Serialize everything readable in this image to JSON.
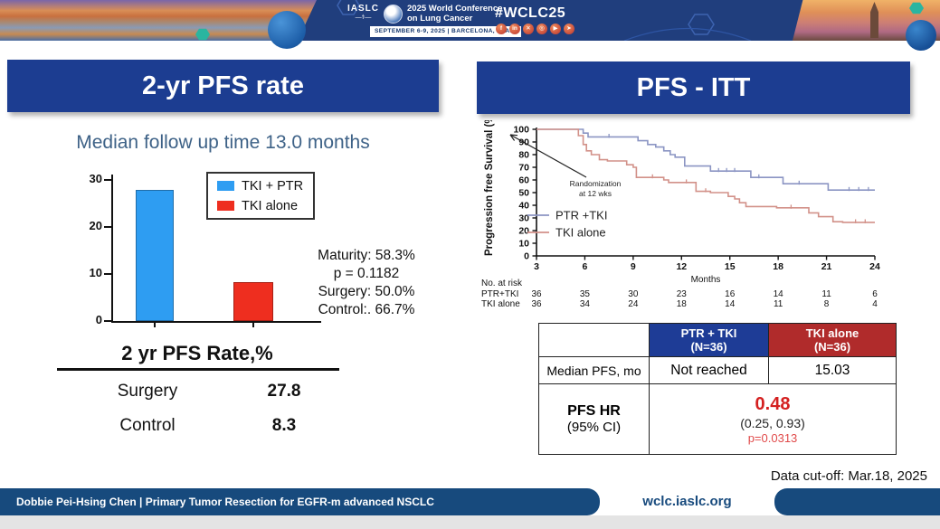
{
  "banner": {
    "iaslc_label": "IASLC",
    "conference_title_line1": "2025 World Conference",
    "conference_title_line2": "on Lung Cancer",
    "conference_dates": "SEPTEMBER 6-9, 2025  |  BARCELONA, SPAIN",
    "hashtag": "#WCLC25",
    "social": [
      {
        "name": "facebook-icon",
        "glyph": "f"
      },
      {
        "name": "linkedin-icon",
        "glyph": "in"
      },
      {
        "name": "x-icon",
        "glyph": "✕"
      },
      {
        "name": "instagram-icon",
        "glyph": "◎"
      },
      {
        "name": "youtube-icon",
        "glyph": "▶"
      },
      {
        "name": "share-icon",
        "glyph": "➤"
      }
    ]
  },
  "left_panel": {
    "title": "2-yr PFS rate",
    "subtitle": "Median follow up time 13.0 months",
    "stats_lines": [
      "Maturity: 58.3%",
      "p = 0.1182",
      "Surgery: 50.0%",
      "Control:. 66.7%"
    ],
    "table": {
      "title": "2 yr PFS Rate,%",
      "rows": [
        {
          "label": "Surgery",
          "value": "27.8"
        },
        {
          "label": "Control",
          "value": "8.3"
        }
      ]
    }
  },
  "right_panel": {
    "title": "PFS - ITT",
    "results_table": {
      "col1_header": "PTR + TKI",
      "col1_sub": "(N=36)",
      "col2_header": "TKI alone",
      "col2_sub": "(N=36)",
      "row1_label": "Median PFS, mo",
      "row1_col1": "Not reached",
      "row1_col2": "15.03",
      "row2_label1": "PFS HR",
      "row2_label2": "(95% CI)",
      "hr_value": "0.48",
      "hr_ci": "(0.25, 0.93)",
      "hr_p": "p=0.0313"
    },
    "data_cutoff": "Data cut-off: Mar.18, 2025"
  },
  "footer": {
    "credit": "Dobbie Pei-Hsing Chen | Primary Tumor Resection for EGFR-m advanced NSCLC",
    "site": "wclc.iaslc.org"
  },
  "colors": {
    "panel_header_bg": "#1c3d91",
    "banner_bg": "#203e7d",
    "subtitle_blue": "#3e6287",
    "bar_blue": "#2e9df2",
    "bar_red": "#ee2e1f",
    "km_blue": "#8b95c3",
    "km_red": "#d29189",
    "table_header_blue": "#1e3c96",
    "table_header_red": "#b02b2b",
    "hr_red": "#d42020",
    "footer_bg": "#174a7d"
  },
  "chart_data": [
    {
      "type": "bar",
      "title": "2-yr PFS rate",
      "categories": [
        "TKI + PTR",
        "TKI alone"
      ],
      "values": [
        27.8,
        8.3
      ],
      "colors": [
        "#2e9df2",
        "#ee2e1f"
      ],
      "xlabel": "",
      "ylabel": "",
      "ylim": [
        0,
        30
      ],
      "yticks": [
        0,
        10,
        20,
        30
      ],
      "legend": [
        "TKI + PTR",
        "TKI alone"
      ],
      "legend_position": "top-right",
      "grid": false
    },
    {
      "type": "line",
      "subtype": "kaplan-meier",
      "title": "PFS - ITT",
      "xlabel": "Months",
      "ylabel": "Progression free Survival (%)",
      "xlim": [
        3,
        24
      ],
      "xticks": [
        3,
        6,
        9,
        12,
        15,
        18,
        21,
        24
      ],
      "ylim": [
        0,
        100
      ],
      "yticks": [
        0,
        10,
        20,
        30,
        40,
        50,
        60,
        70,
        80,
        90,
        100
      ],
      "grid": false,
      "legend_position": "inside-left",
      "annotation": {
        "lines": [
          "Randomization",
          "at 12 wks"
        ]
      },
      "series": [
        {
          "name": "PTR +TKI",
          "color": "#8b95c3",
          "points": [
            [
              3,
              100
            ],
            [
              5.9,
              100
            ],
            [
              5.9,
              97
            ],
            [
              6.2,
              97
            ],
            [
              6.2,
              94
            ],
            [
              9.3,
              94
            ],
            [
              9.3,
              91
            ],
            [
              9.9,
              91
            ],
            [
              9.9,
              88
            ],
            [
              10.4,
              88
            ],
            [
              10.4,
              86
            ],
            [
              10.9,
              86
            ],
            [
              10.9,
              83
            ],
            [
              11.3,
              83
            ],
            [
              11.3,
              80
            ],
            [
              11.6,
              80
            ],
            [
              11.6,
              78
            ],
            [
              12.2,
              78
            ],
            [
              12.2,
              71
            ],
            [
              13.8,
              71
            ],
            [
              13.8,
              67
            ],
            [
              16.3,
              67
            ],
            [
              16.3,
              62
            ],
            [
              18.3,
              62
            ],
            [
              18.3,
              57
            ],
            [
              21.1,
              57
            ],
            [
              21.1,
              52
            ],
            [
              24,
              52
            ]
          ],
          "censors": [
            [
              7.5,
              94
            ],
            [
              14.3,
              67
            ],
            [
              14.8,
              67
            ],
            [
              15.3,
              67
            ],
            [
              16.8,
              62
            ],
            [
              19.3,
              57
            ],
            [
              22.4,
              52
            ],
            [
              23.0,
              52
            ],
            [
              23.6,
              52
            ]
          ]
        },
        {
          "name": "TKI alone",
          "color": "#d29189",
          "points": [
            [
              3,
              100
            ],
            [
              5.6,
              100
            ],
            [
              5.6,
              95
            ],
            [
              5.9,
              95
            ],
            [
              5.9,
              88
            ],
            [
              6.1,
              88
            ],
            [
              6.1,
              83
            ],
            [
              6.4,
              83
            ],
            [
              6.4,
              80
            ],
            [
              6.9,
              80
            ],
            [
              6.9,
              76
            ],
            [
              7.4,
              76
            ],
            [
              7.4,
              75
            ],
            [
              8.6,
              75
            ],
            [
              8.6,
              72
            ],
            [
              9.0,
              72
            ],
            [
              9.0,
              70
            ],
            [
              9.2,
              70
            ],
            [
              9.2,
              62
            ],
            [
              10.9,
              62
            ],
            [
              10.9,
              60
            ],
            [
              11.2,
              60
            ],
            [
              11.2,
              58
            ],
            [
              12.9,
              58
            ],
            [
              12.9,
              51
            ],
            [
              13.8,
              51
            ],
            [
              13.8,
              50
            ],
            [
              14.9,
              50
            ],
            [
              14.9,
              47
            ],
            [
              15.3,
              47
            ],
            [
              15.3,
              45
            ],
            [
              15.6,
              45
            ],
            [
              15.6,
              42
            ],
            [
              16.0,
              42
            ],
            [
              16.0,
              39
            ],
            [
              17.9,
              39
            ],
            [
              17.9,
              38
            ],
            [
              19.9,
              38
            ],
            [
              19.9,
              34
            ],
            [
              20.5,
              34
            ],
            [
              20.5,
              31
            ],
            [
              21.4,
              31
            ],
            [
              21.4,
              27
            ],
            [
              22.0,
              27
            ],
            [
              22.0,
              26.5
            ],
            [
              24,
              26.5
            ]
          ],
          "censors": [
            [
              10.2,
              62
            ],
            [
              12.3,
              58
            ],
            [
              13.5,
              51
            ],
            [
              18.8,
              38
            ],
            [
              22.8,
              26.5
            ],
            [
              23.4,
              26.5
            ]
          ]
        }
      ],
      "no_at_risk": {
        "label": "No. at  risk",
        "rows": [
          {
            "name": "PTR+TKI",
            "values": [
              36,
              35,
              30,
              23,
              16,
              14,
              11,
              6
            ]
          },
          {
            "name": "TKI alone",
            "values": [
              36,
              34,
              24,
              18,
              14,
              11,
              8,
              4
            ]
          }
        ]
      }
    }
  ]
}
